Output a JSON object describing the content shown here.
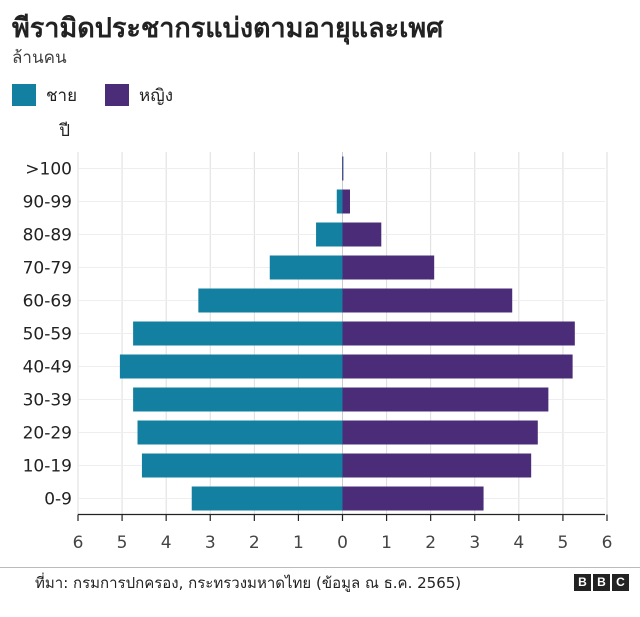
{
  "header": {
    "title": "พีรามิดประชากรแบ่งตามอายุและเพศ",
    "subtitle": "ล้านคน"
  },
  "legend": {
    "male_label": "ชาย",
    "female_label": "หญิง"
  },
  "colors": {
    "male": "#1380A1",
    "female": "#4B2C78",
    "grid": "#dddddd",
    "axis": "#222222",
    "zero_line": "#cccccc"
  },
  "footer": {
    "source": "ที่มา: กรมการปกครอง, กระทรวงมหาดไทย (ข้อมูล ณ ธ.ค. 2565)",
    "logo": [
      "B",
      "B",
      "C"
    ]
  },
  "chart_data": {
    "type": "bar",
    "orientation": "horizontal",
    "title": "พีรามิดประชากรแบ่งตามอายุและเพศ",
    "unit": "ล้านคน",
    "ylabel": "ปี",
    "categories": [
      ">100",
      "90-99",
      "80-89",
      "70-79",
      "60-69",
      "50-59",
      "40-49",
      "30-39",
      "20-29",
      "10-19",
      "0-9"
    ],
    "series": [
      {
        "name": "ชาย",
        "side": "left",
        "values": [
          0.01,
          0.13,
          0.6,
          1.65,
          3.27,
          4.75,
          5.05,
          4.75,
          4.65,
          4.55,
          3.42
        ]
      },
      {
        "name": "หญิง",
        "side": "right",
        "values": [
          0.02,
          0.17,
          0.88,
          2.08,
          3.85,
          5.27,
          5.22,
          4.67,
          4.43,
          4.28,
          3.2
        ]
      }
    ],
    "xlim": [
      -6,
      6
    ],
    "xticks": [
      -6,
      -5,
      -4,
      -3,
      -2,
      -1,
      0,
      1,
      2,
      3,
      4,
      5,
      6
    ],
    "xtick_labels": [
      "6",
      "5",
      "4",
      "3",
      "2",
      "1",
      "0",
      "1",
      "2",
      "3",
      "4",
      "5",
      "6"
    ],
    "grid": true,
    "legend_position": "top-left"
  }
}
